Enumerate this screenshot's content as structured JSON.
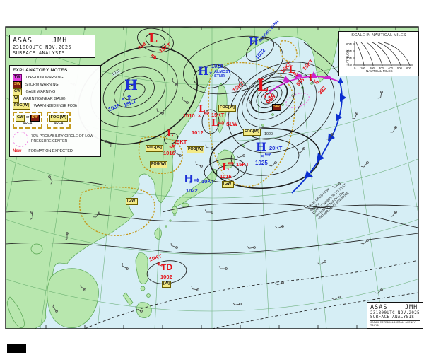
{
  "header_box": {
    "l1": "ASAS    JMH",
    "l2": "231800UTC NOV.2025",
    "l3": "SURFACE ANALYSIS"
  },
  "footer_box": {
    "l1": "ASAS    JMH",
    "l2": "231800UTC NOV.2025",
    "l3": "SURFACE ANALYSIS",
    "agency": "JAPAN METEOROLOGICAL AGENCY TOKYO"
  },
  "legend": {
    "title": "EXPLANATORY NOTES",
    "items": [
      {
        "badge": "TW",
        "text": "TYPHOON WARNING"
      },
      {
        "badge": "SW",
        "text": "STORM WARNING"
      },
      {
        "badge": "GW",
        "text": "GALE WARNING"
      },
      {
        "badge": "W",
        "text": "WARNING(NEAR GALE)"
      },
      {
        "badge": "FOG[W]",
        "text": "WARNING(DENSE FOG)"
      }
    ],
    "or_text": "or",
    "area_label": "AREA",
    "badge_gw": "GW",
    "badge_sw": "SW",
    "badge_fogw": "FOG [W]",
    "prob_text": "70% PROBABILITY CIRCLE OF LOW-PRESSURE CENTER",
    "new_label": "New",
    "new_text": "FORMATION EXPECTED"
  },
  "scale_box": {
    "title": "SCALE IN NAUTICAL MILES",
    "ylabel": "LATITUDE",
    "xlabel": "NAUTICAL MILES",
    "yticks": [
      "60N",
      "40N",
      "20N",
      "EQ"
    ],
    "xticks": [
      "0",
      "100",
      "200",
      "300",
      "400",
      "500",
      "600"
    ]
  },
  "marks": {
    "x": "×",
    "arrow": "⇨"
  },
  "badges": {
    "fog": "FOG[W]",
    "gw": "[GW]",
    "sw": "SW",
    "w": "[W]"
  },
  "systems": [
    {
      "letter": "H",
      "value": "1036",
      "move": "15KT"
    },
    {
      "letter": "L",
      "value": "994",
      "move": "15KT"
    },
    {
      "letter": "H",
      "value": "1028",
      "extra": "ALMOST STNR"
    },
    {
      "letter": "H",
      "value": "1022",
      "extra": "ALMOST STNR"
    },
    {
      "letter": "L",
      "value": "1010",
      "move": "15KT"
    },
    {
      "letter": "L",
      "value": "1012",
      "extra": "SLW"
    },
    {
      "letter": "L",
      "value": "1016",
      "move": "15KT"
    },
    {
      "letter": "L",
      "value": "988",
      "move": "15KT",
      "badge": "SW"
    },
    {
      "letter": "L",
      "value": "988",
      "move": "15KT"
    },
    {
      "letter": "L",
      "value": "992",
      "move": "15KT"
    },
    {
      "letter": "H",
      "value": "1022",
      "move": "10KT"
    },
    {
      "letter": "L",
      "value": "1016",
      "move": "15KT",
      "badge": "GW"
    },
    {
      "letter": "H",
      "value": "1025",
      "move": "20KT"
    },
    {
      "letter": "TD",
      "value": "1002",
      "move": "10KT",
      "badge": "W"
    }
  ],
  "iso_labels": {
    "a": "1020",
    "b": "1020"
  },
  "annotation": {
    "l1": "DEVELOPED LOW",
    "l2": "988hPa",
    "l3": "EXPECT WINDS 30 TO 50 KT",
    "l4": "WITHIN 750 NM OF LOW",
    "l5": "AND 600 NM ELSEWHERE"
  },
  "stations": [
    [
      60,
      75,
      210
    ],
    [
      105,
      120,
      200
    ],
    [
      150,
      200,
      30
    ],
    [
      70,
      250,
      60
    ],
    [
      45,
      300,
      80
    ],
    [
      95,
      330,
      90
    ],
    [
      140,
      300,
      120
    ],
    [
      250,
      120,
      220
    ],
    [
      265,
      145,
      210
    ],
    [
      230,
      160,
      200
    ],
    [
      340,
      120,
      250
    ],
    [
      355,
      145,
      240
    ],
    [
      300,
      210,
      190
    ],
    [
      345,
      220,
      160
    ],
    [
      390,
      230,
      140
    ],
    [
      430,
      210,
      130
    ],
    [
      470,
      190,
      120
    ],
    [
      505,
      160,
      110
    ],
    [
      540,
      130,
      100
    ],
    [
      560,
      180,
      120
    ],
    [
      520,
      230,
      130
    ],
    [
      480,
      260,
      140
    ],
    [
      440,
      290,
      150
    ],
    [
      400,
      320,
      160
    ],
    [
      360,
      350,
      170
    ],
    [
      320,
      380,
      180
    ],
    [
      280,
      410,
      190
    ],
    [
      340,
      430,
      170
    ],
    [
      400,
      400,
      160
    ],
    [
      460,
      370,
      150
    ],
    [
      520,
      340,
      140
    ],
    [
      560,
      300,
      130
    ],
    [
      250,
      350,
      200
    ],
    [
      180,
      380,
      210
    ],
    [
      120,
      410,
      220
    ],
    [
      80,
      440,
      230
    ],
    [
      200,
      440,
      200
    ],
    [
      480,
      420,
      150
    ],
    [
      540,
      410,
      140
    ],
    [
      300,
      300,
      180
    ],
    [
      255,
      220,
      210
    ],
    [
      285,
      235,
      200
    ]
  ]
}
